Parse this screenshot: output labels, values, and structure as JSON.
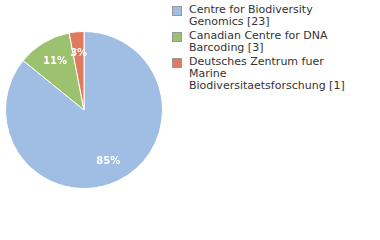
{
  "chart_data": {
    "type": "pie",
    "categories": [
      "Centre for Biodiversity Genomics [23]",
      "Canadian Centre for DNA Barcoding [3]",
      "Deutsches Zentrum fuer Marine Biodiversitaetsforschung [1]"
    ],
    "values": [
      85,
      11,
      3
    ],
    "value_labels": [
      "85%",
      "11%",
      "3%"
    ],
    "colors": [
      "#a0bde3",
      "#9dc26f",
      "#e07a5f"
    ],
    "data_labels": true,
    "legend": "right"
  }
}
